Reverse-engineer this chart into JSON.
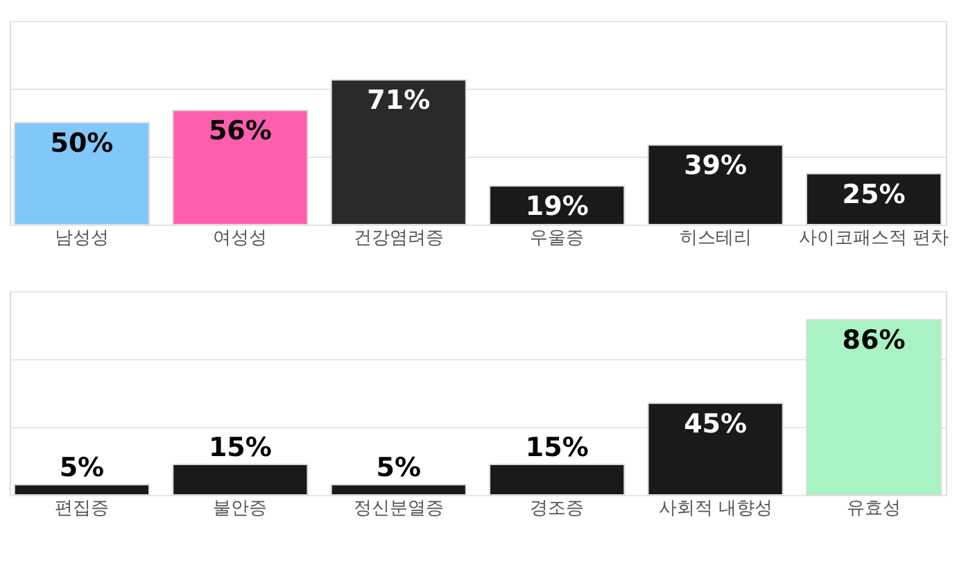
{
  "chart_data": [
    {
      "type": "bar",
      "categories": [
        "남성성",
        "여성성",
        "건강염려증",
        "우울증",
        "히스테리",
        "사이코패스적 편차"
      ],
      "values": [
        50,
        56,
        71,
        19,
        39,
        25
      ],
      "value_labels": [
        "50%",
        "56%",
        "71%",
        "19%",
        "39%",
        "25%"
      ],
      "colors": [
        "#80c8fa",
        "#ff5fae",
        "#2a2a2a",
        "#1a1a1a",
        "#1a1a1a",
        "#1a1a1a"
      ],
      "ylim": [
        0,
        100
      ],
      "yticks": [
        {
          "value": 0,
          "label": null
        },
        {
          "value": 33.3,
          "label": null
        },
        {
          "value": 66.7,
          "label": null
        },
        {
          "value": 100,
          "label": null
        }
      ],
      "grid": "y",
      "tick_labels": "x"
    },
    {
      "type": "bar",
      "categories": [
        "편집증",
        "불안증",
        "정신분열증",
        "경조증",
        "사회적 내향성",
        "유효성"
      ],
      "values": [
        5,
        15,
        5,
        15,
        45,
        86
      ],
      "value_labels": [
        "5%",
        "15%",
        "5%",
        "15%",
        "45%",
        "86%"
      ],
      "colors": [
        "#1a1a1a",
        "#1a1a1a",
        "#1a1a1a",
        "#1a1a1a",
        "#1a1a1a",
        "#a8f2c4"
      ],
      "ylim": [
        0,
        100
      ],
      "yticks": [
        {
          "value": 0,
          "label": null
        },
        {
          "value": 33.3,
          "label": null
        },
        {
          "value": 66.7,
          "label": null
        },
        {
          "value": 100,
          "label": null
        }
      ],
      "grid": "y",
      "tick_labels": "x"
    }
  ]
}
